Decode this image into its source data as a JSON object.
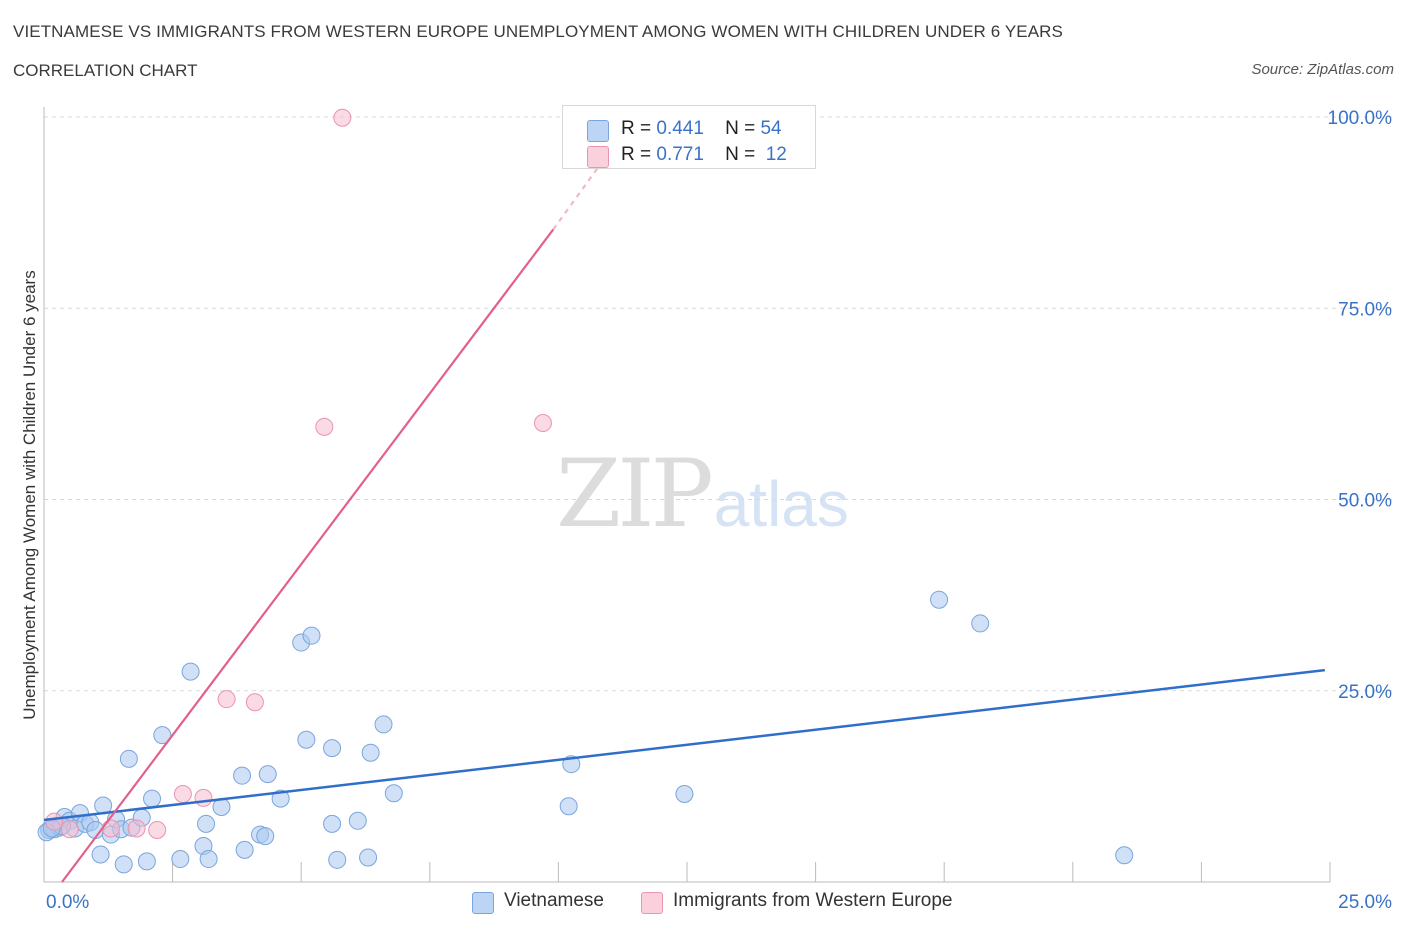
{
  "title": "VIETNAMESE VS IMMIGRANTS FROM WESTERN EUROPE UNEMPLOYMENT AMONG WOMEN WITH CHILDREN UNDER 6 YEARS",
  "subtitle": "CORRELATION CHART",
  "source": "Source: ZipAtlas.com",
  "watermark": {
    "zip": "ZIP",
    "atlas": "atlas"
  },
  "legend": {
    "r_label": "R =",
    "n_label": "N =",
    "entries": [
      {
        "r": "0.441",
        "n": "54"
      },
      {
        "r": "0.771",
        "n": "12"
      }
    ]
  },
  "bottom_legend": [
    "Vietnamese",
    "Immigrants from Western Europe"
  ],
  "colors": {
    "blue_fill": "#a9c8f0",
    "blue_stroke": "#7aa5dc",
    "blue_line": "#2f6fca",
    "pink_fill": "#f6bccd",
    "pink_stroke": "#eb94ad",
    "pink_line": "#e2608a",
    "grid": "#d9d9d9",
    "tick_text": "#3a72c8"
  },
  "chart_data": {
    "type": "scatter",
    "title": "VIETNAMESE VS IMMIGRANTS FROM WESTERN EUROPE UNEMPLOYMENT AMONG WOMEN WITH CHILDREN UNDER 6 YEARS",
    "xlabel": "",
    "ylabel": "Unemployment Among Women with Children Under 6 years",
    "xlim": [
      0,
      25
    ],
    "ylim": [
      0,
      100
    ],
    "x_tick_labels": [
      {
        "value": 0,
        "label": "0.0%"
      },
      {
        "value": 25,
        "label": "25.0%"
      }
    ],
    "y_tick_labels": [
      {
        "value": 100,
        "label": "100.0%"
      },
      {
        "value": 75,
        "label": "75.0%"
      },
      {
        "value": 50,
        "label": "50.0%"
      },
      {
        "value": 25,
        "label": "25.0%"
      }
    ],
    "series": [
      {
        "name": "Vietnamese",
        "color": "#a9c8f0",
        "points": [
          [
            0.1,
            6.8
          ],
          [
            0.2,
            6.9
          ],
          [
            0.3,
            7.1
          ],
          [
            0.4,
            8.5
          ],
          [
            0.5,
            8.0
          ],
          [
            0.6,
            7.0
          ],
          [
            0.7,
            9.0
          ],
          [
            0.8,
            7.6
          ],
          [
            0.9,
            7.8
          ],
          [
            1.0,
            6.8
          ],
          [
            1.1,
            3.6
          ],
          [
            1.15,
            10.0
          ],
          [
            1.3,
            6.2
          ],
          [
            1.4,
            8.2
          ],
          [
            1.5,
            6.9
          ],
          [
            1.55,
            2.3
          ],
          [
            1.65,
            16.1
          ],
          [
            1.7,
            7.1
          ],
          [
            1.9,
            8.4
          ],
          [
            2.0,
            2.7
          ],
          [
            2.1,
            10.9
          ],
          [
            2.3,
            19.2
          ],
          [
            2.65,
            3.0
          ],
          [
            2.85,
            27.5
          ],
          [
            3.1,
            4.7
          ],
          [
            3.15,
            7.6
          ],
          [
            3.2,
            3.0
          ],
          [
            3.45,
            9.8
          ],
          [
            3.9,
            4.2
          ],
          [
            3.85,
            13.9
          ],
          [
            4.2,
            6.2
          ],
          [
            4.3,
            6.0
          ],
          [
            4.35,
            14.1
          ],
          [
            4.6,
            10.9
          ],
          [
            5.0,
            31.3
          ],
          [
            5.2,
            32.2
          ],
          [
            5.1,
            18.6
          ],
          [
            5.6,
            17.5
          ],
          [
            5.6,
            7.6
          ],
          [
            5.7,
            2.9
          ],
          [
            6.1,
            8.0
          ],
          [
            6.3,
            3.2
          ],
          [
            6.35,
            16.9
          ],
          [
            6.6,
            20.6
          ],
          [
            6.8,
            11.6
          ],
          [
            10.2,
            9.9
          ],
          [
            10.25,
            15.4
          ],
          [
            12.45,
            11.5
          ],
          [
            17.4,
            36.9
          ],
          [
            18.2,
            33.8
          ],
          [
            21.0,
            3.5
          ],
          [
            0.05,
            6.5
          ],
          [
            0.35,
            7.3
          ],
          [
            0.15,
            7.0
          ]
        ]
      },
      {
        "name": "Immigrants from Western Europe",
        "color": "#f6bccd",
        "points": [
          [
            0.2,
            7.9
          ],
          [
            0.5,
            6.9
          ],
          [
            1.3,
            7.0
          ],
          [
            2.2,
            6.8
          ],
          [
            2.7,
            11.5
          ],
          [
            3.1,
            11.0
          ],
          [
            3.55,
            23.9
          ],
          [
            4.1,
            23.5
          ],
          [
            5.45,
            59.5
          ],
          [
            5.8,
            99.9
          ],
          [
            9.7,
            60.0
          ],
          [
            1.8,
            7.0
          ]
        ]
      }
    ],
    "trendlines": [
      {
        "series": "Vietnamese",
        "x": [
          0.0,
          24.9
        ],
        "y": [
          8.1,
          27.7
        ]
      },
      {
        "series": "Immigrants from Western Europe",
        "x": [
          0.35,
          9.9
        ],
        "y": [
          0.0,
          85.3
        ]
      },
      {
        "series": "Immigrants from Western Europe",
        "style": "dashed",
        "x": [
          9.9,
          11.05
        ],
        "y": [
          85.3,
          96.0
        ]
      }
    ],
    "grid": true,
    "legend": "top-center"
  }
}
